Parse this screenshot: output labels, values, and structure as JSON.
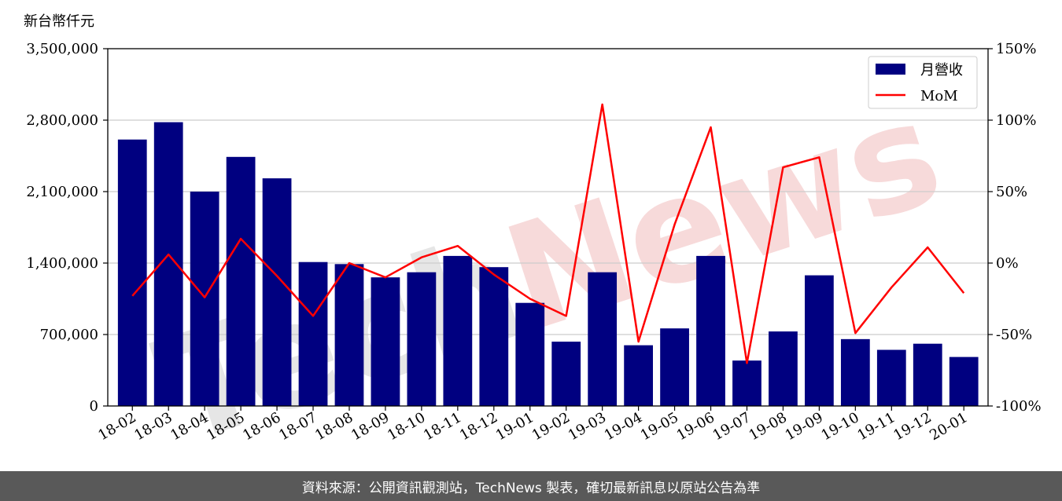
{
  "chart_data": {
    "type": "bar",
    "unit_label": "新台幣仟元",
    "categories": [
      "18-02",
      "18-03",
      "18-04",
      "18-05",
      "18-06",
      "18-07",
      "18-08",
      "18-09",
      "18-10",
      "18-11",
      "18-12",
      "19-01",
      "19-02",
      "19-03",
      "19-04",
      "19-05",
      "19-06",
      "19-07",
      "19-08",
      "19-09",
      "19-10",
      "19-11",
      "19-12",
      "20-01"
    ],
    "series": [
      {
        "name": "月營收",
        "axis": "left",
        "type": "bar",
        "color": "#000080",
        "values": [
          2610000,
          2780000,
          2100000,
          2440000,
          2230000,
          1410000,
          1390000,
          1260000,
          1310000,
          1470000,
          1360000,
          1010000,
          630000,
          1310000,
          595000,
          760000,
          1470000,
          445000,
          730000,
          1280000,
          655000,
          550000,
          610000,
          480000
        ]
      },
      {
        "name": "MoM",
        "axis": "right",
        "type": "line",
        "color": "#ff0000",
        "values": [
          -23,
          6,
          -24,
          17,
          -9,
          -37,
          0,
          -10,
          4,
          12,
          -8,
          -25,
          -37,
          111,
          -55,
          27,
          95,
          -70,
          67,
          74,
          -49,
          -17,
          11,
          -21
        ]
      }
    ],
    "left_axis": {
      "ylim": [
        0,
        3500000
      ],
      "ticks": [
        0,
        700000,
        1400000,
        2100000,
        2800000,
        3500000
      ],
      "tick_labels": [
        "0",
        "700,000",
        "1,400,000",
        "2,100,000",
        "2,800,000",
        "3,500,000"
      ]
    },
    "right_axis": {
      "ylim": [
        -100,
        150
      ],
      "ticks": [
        -100,
        -50,
        0,
        50,
        100,
        150
      ],
      "tick_labels": [
        "-100%",
        "-50%",
        "0%",
        "50%",
        "100%",
        "150%"
      ]
    },
    "grid": true,
    "legend_position": "top-right"
  },
  "watermark": "TechNews",
  "footer": {
    "text": "資料來源：公開資訊觀測站，TechNews 製表，確切最新訊息以原站公告為準"
  }
}
